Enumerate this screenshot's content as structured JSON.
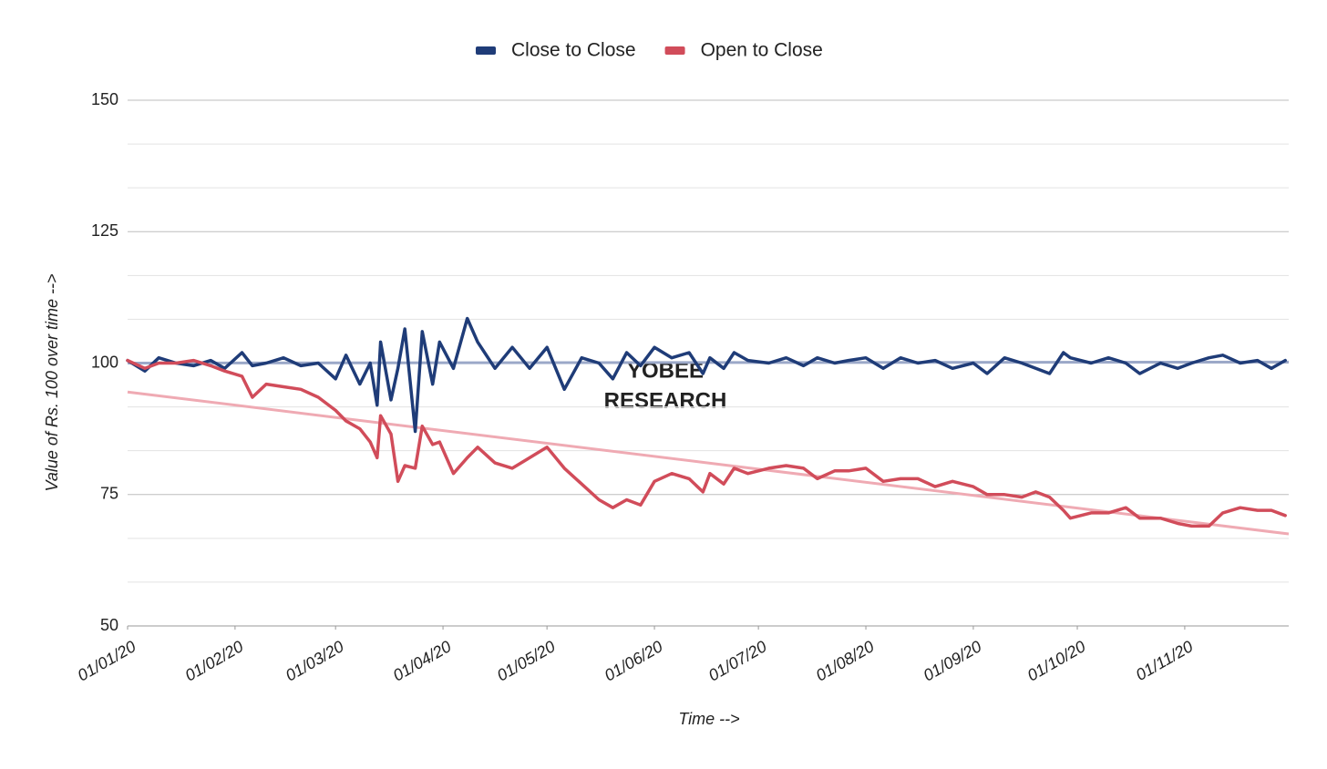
{
  "chart_data": {
    "type": "line",
    "y_label": "Value of Rs. 100 over time -->",
    "x_label": "Time -->",
    "watermark": [
      "YOBEE",
      "RESEARCH"
    ],
    "x": [
      "01/01/20",
      "06/01/20",
      "10/01/20",
      "15/01/20",
      "20/01/20",
      "25/01/20",
      "29/01/20",
      "03/02/20",
      "06/02/20",
      "10/02/20",
      "15/02/20",
      "20/02/20",
      "25/02/20",
      "01/03/20",
      "04/03/20",
      "08/03/20",
      "11/03/20",
      "13/03/20",
      "14/03/20",
      "17/03/20",
      "19/03/20",
      "21/03/20",
      "24/03/20",
      "26/03/20",
      "29/03/20",
      "31/03/20",
      "04/04/20",
      "08/04/20",
      "11/04/20",
      "16/04/20",
      "21/04/20",
      "26/04/20",
      "01/05/20",
      "06/05/20",
      "11/05/20",
      "16/05/20",
      "20/05/20",
      "24/05/20",
      "28/05/20",
      "01/06/20",
      "06/06/20",
      "11/06/20",
      "15/06/20",
      "17/06/20",
      "21/06/20",
      "24/06/20",
      "28/06/20",
      "04/07/20",
      "09/07/20",
      "14/07/20",
      "18/07/20",
      "23/07/20",
      "27/07/20",
      "01/08/20",
      "06/08/20",
      "11/08/20",
      "16/08/20",
      "21/08/20",
      "26/08/20",
      "01/09/20",
      "05/09/20",
      "10/09/20",
      "15/09/20",
      "19/09/20",
      "23/09/20",
      "27/09/20",
      "29/09/20",
      "05/10/20",
      "10/10/20",
      "15/10/20",
      "19/10/20",
      "25/10/20",
      "30/10/20",
      "03/11/20",
      "08/11/20",
      "12/11/20",
      "17/11/20",
      "22/11/20",
      "26/11/20",
      "30/11/20"
    ],
    "series": [
      {
        "name": "Close to Close",
        "color": "#1f3c78",
        "values": [
          100.5,
          98.5,
          101,
          100,
          99.5,
          100.5,
          99,
          102,
          99.5,
          100,
          101,
          99.5,
          100,
          97,
          101.5,
          96,
          100,
          92,
          104,
          93,
          99,
          106.5,
          87,
          106,
          96,
          104,
          99,
          108.5,
          104,
          99,
          103,
          99,
          103,
          95,
          101,
          100,
          97,
          102,
          99.5,
          103,
          101,
          102,
          98,
          101,
          99,
          102,
          100.5,
          100,
          101,
          99.5,
          101,
          100,
          100.5,
          101,
          99,
          101,
          100,
          100.5,
          99,
          100,
          98,
          101,
          100,
          99,
          98,
          102,
          101,
          100,
          101,
          100,
          98,
          100,
          99,
          100,
          101,
          101.5,
          100,
          100.5,
          99,
          100.5
        ],
        "trendline": {
          "color": "#9ba8c8",
          "x": [
            "01/01/20",
            "01/12/20"
          ],
          "values": [
            100,
            100.2
          ]
        }
      },
      {
        "name": "Open to Close",
        "color": "#d14c5a",
        "values": [
          100.5,
          99,
          100,
          100,
          100.5,
          99.5,
          98.5,
          97.5,
          93.5,
          96,
          95.5,
          95,
          93.5,
          91,
          89,
          87.5,
          85,
          82,
          90,
          86.5,
          77.5,
          80.5,
          80,
          88,
          84.5,
          85,
          79,
          82,
          84,
          81,
          80,
          82,
          84,
          80,
          77,
          74,
          72.5,
          74,
          73,
          77.5,
          79,
          78,
          75.5,
          79,
          77,
          80,
          79,
          80,
          80.5,
          80,
          78,
          79.5,
          79.5,
          80,
          77.5,
          78,
          78,
          76.5,
          77.5,
          76.5,
          75,
          75,
          74.5,
          75.5,
          74.5,
          72,
          70.5,
          71.5,
          71.5,
          72.5,
          70.5,
          70.5,
          69.5,
          69,
          69,
          71.5,
          72.5,
          72,
          72,
          71
        ],
        "trendline": {
          "color": "#efaab3",
          "x": [
            "01/01/20",
            "01/12/20"
          ],
          "values": [
            94.5,
            67.5
          ]
        }
      }
    ],
    "xlim": [
      "01/01/20",
      "01/12/20"
    ],
    "xticks": [
      "01/01/20",
      "01/02/20",
      "01/03/20",
      "01/04/20",
      "01/05/20",
      "01/06/20",
      "01/07/20",
      "01/08/20",
      "01/09/20",
      "01/10/20",
      "01/11/20"
    ],
    "ylim": [
      50,
      150
    ],
    "yticks": [
      50,
      75,
      100,
      125,
      150
    ],
    "grid": true,
    "minor_gridlines": 2,
    "legend": "top"
  }
}
